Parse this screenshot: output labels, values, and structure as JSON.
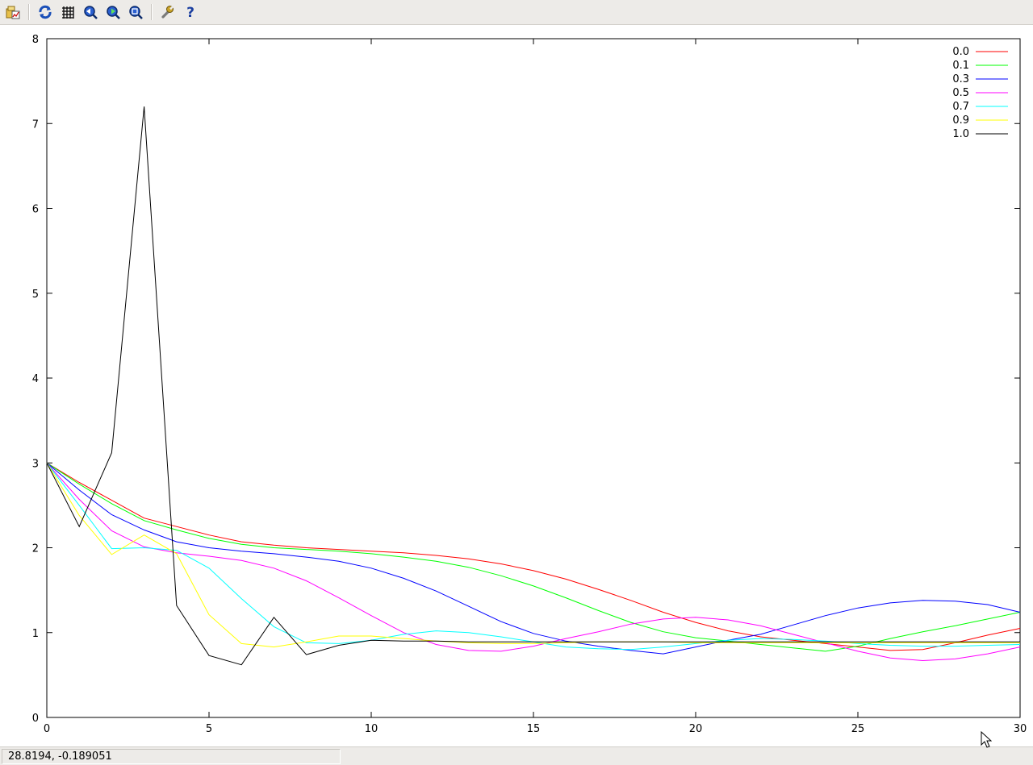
{
  "toolbar": {
    "buttons": [
      {
        "name": "export-plot-icon",
        "tooltip": "Export"
      },
      {
        "name": "replot-icon",
        "tooltip": "Replot"
      },
      {
        "name": "grid-icon",
        "tooltip": "Toggle grid"
      },
      {
        "name": "zoom-previous-icon",
        "tooltip": "Previous zoom"
      },
      {
        "name": "zoom-next-icon",
        "tooltip": "Next zoom"
      },
      {
        "name": "autoscale-icon",
        "tooltip": "Autoscale"
      },
      {
        "name": "settings-icon",
        "tooltip": "Configure"
      },
      {
        "name": "help-icon",
        "tooltip": "Help"
      }
    ]
  },
  "status": {
    "coordinates": "28.8194, -0.189051"
  },
  "chart_data": {
    "type": "line",
    "title": "",
    "xlabel": "",
    "ylabel": "",
    "xlim": [
      0,
      30
    ],
    "ylim": [
      0,
      8
    ],
    "x_ticks": [
      0,
      5,
      10,
      15,
      20,
      25,
      30
    ],
    "y_ticks": [
      0,
      1,
      2,
      3,
      4,
      5,
      6,
      7,
      8
    ],
    "grid": false,
    "legend_position": "top-right",
    "x": [
      0,
      1,
      2,
      3,
      4,
      5,
      6,
      7,
      8,
      9,
      10,
      11,
      12,
      13,
      14,
      15,
      16,
      17,
      18,
      19,
      20,
      21,
      22,
      23,
      24,
      25,
      26,
      27,
      28,
      29,
      30
    ],
    "series": [
      {
        "name": "0.0",
        "color": "#ff0000",
        "values": [
          3.0,
          2.77,
          2.56,
          2.35,
          2.25,
          2.15,
          2.07,
          2.03,
          2.0,
          1.98,
          1.96,
          1.94,
          1.91,
          1.87,
          1.81,
          1.73,
          1.63,
          1.51,
          1.38,
          1.24,
          1.12,
          1.02,
          0.95,
          0.91,
          0.87,
          0.83,
          0.79,
          0.8,
          0.88,
          0.97,
          1.05
        ]
      },
      {
        "name": "0.1",
        "color": "#00ff00",
        "values": [
          3.0,
          2.75,
          2.52,
          2.32,
          2.21,
          2.11,
          2.04,
          2.0,
          1.98,
          1.96,
          1.93,
          1.89,
          1.84,
          1.77,
          1.67,
          1.55,
          1.41,
          1.26,
          1.12,
          1.01,
          0.94,
          0.9,
          0.86,
          0.82,
          0.78,
          0.84,
          0.93,
          1.01,
          1.08,
          1.16,
          1.24
        ]
      },
      {
        "name": "0.3",
        "color": "#0000ff",
        "values": [
          3.0,
          2.68,
          2.39,
          2.21,
          2.07,
          2.0,
          1.96,
          1.93,
          1.89,
          1.84,
          1.76,
          1.64,
          1.49,
          1.31,
          1.13,
          0.99,
          0.9,
          0.84,
          0.79,
          0.75,
          0.83,
          0.91,
          0.98,
          1.09,
          1.2,
          1.29,
          1.35,
          1.38,
          1.37,
          1.33,
          1.24
        ]
      },
      {
        "name": "0.5",
        "color": "#ff00ff",
        "values": [
          3.0,
          2.57,
          2.2,
          2.01,
          1.94,
          1.9,
          1.85,
          1.76,
          1.61,
          1.41,
          1.2,
          1.0,
          0.86,
          0.79,
          0.78,
          0.84,
          0.93,
          1.01,
          1.1,
          1.16,
          1.18,
          1.15,
          1.08,
          0.98,
          0.88,
          0.78,
          0.7,
          0.67,
          0.69,
          0.75,
          0.83
        ]
      },
      {
        "name": "0.7",
        "color": "#00ffff",
        "values": [
          3.0,
          2.5,
          1.99,
          2.0,
          1.97,
          1.76,
          1.4,
          1.07,
          0.88,
          0.87,
          0.91,
          0.98,
          1.02,
          1.0,
          0.95,
          0.89,
          0.83,
          0.81,
          0.8,
          0.83,
          0.87,
          0.91,
          0.93,
          0.92,
          0.9,
          0.87,
          0.85,
          0.84,
          0.84,
          0.85,
          0.86
        ]
      },
      {
        "name": "0.9",
        "color": "#ffff00",
        "values": [
          3.0,
          2.38,
          1.92,
          2.15,
          1.93,
          1.21,
          0.87,
          0.83,
          0.89,
          0.96,
          0.96,
          0.93,
          0.9,
          0.88,
          0.87,
          0.87,
          0.88,
          0.89,
          0.89,
          0.89,
          0.88,
          0.88,
          0.88,
          0.88,
          0.88,
          0.88,
          0.88,
          0.88,
          0.88,
          0.88,
          0.88
        ]
      },
      {
        "name": "1.0",
        "color": "#000000",
        "values": [
          3.0,
          2.25,
          3.12,
          7.2,
          1.32,
          0.73,
          0.62,
          1.18,
          0.74,
          0.85,
          0.91,
          0.9,
          0.9,
          0.89,
          0.89,
          0.89,
          0.89,
          0.89,
          0.89,
          0.89,
          0.89,
          0.89,
          0.89,
          0.89,
          0.89,
          0.89,
          0.89,
          0.89,
          0.89,
          0.89,
          0.89
        ]
      }
    ]
  }
}
